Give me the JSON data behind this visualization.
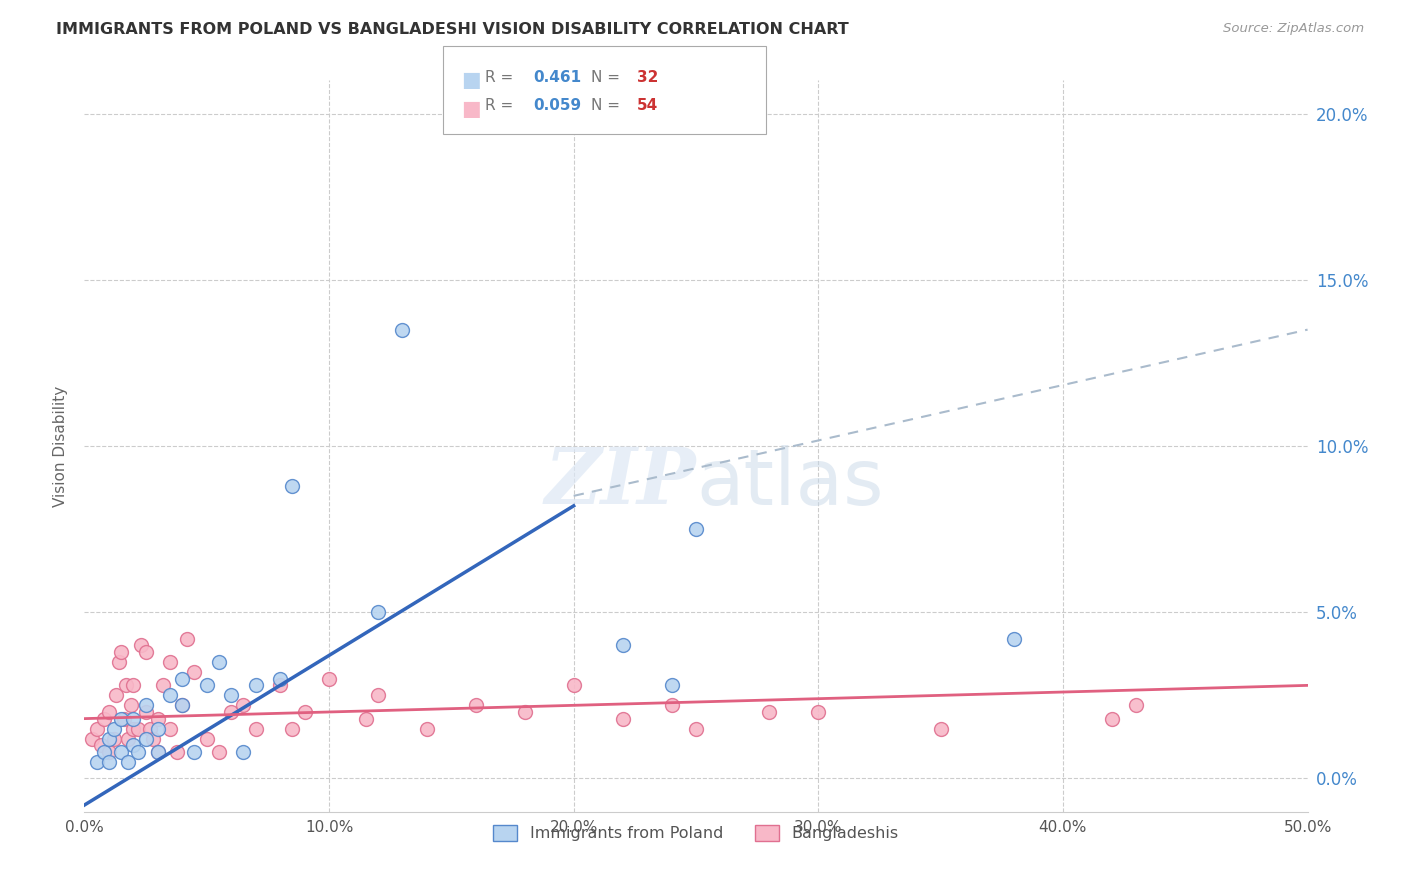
{
  "title": "IMMIGRANTS FROM POLAND VS BANGLADESHI VISION DISABILITY CORRELATION CHART",
  "source": "Source: ZipAtlas.com",
  "ylabel": "Vision Disability",
  "legend_label1": "Immigrants from Poland",
  "legend_label2": "Bangladeshis",
  "R1": "0.461",
  "N1": "32",
  "R2": "0.059",
  "N2": "54",
  "color_blue_fill": "#b8d4f0",
  "color_blue_edge": "#5588cc",
  "color_blue_line": "#3366bb",
  "color_pink_fill": "#f8b8c8",
  "color_pink_edge": "#e07090",
  "color_pink_line": "#e06080",
  "color_dashed": "#aabbcc",
  "ytick_color": "#4488cc",
  "xlim": [
    0.0,
    0.5
  ],
  "ylim": [
    -0.01,
    0.21
  ],
  "ytick_vals": [
    0.0,
    0.05,
    0.1,
    0.15,
    0.2
  ],
  "ytick_labels": [
    "0.0%",
    "5.0%",
    "10.0%",
    "15.0%",
    "20.0%"
  ],
  "xtick_vals": [
    0.0,
    0.1,
    0.2,
    0.3,
    0.4,
    0.5
  ],
  "xtick_labels": [
    "0.0%",
    "10.0%",
    "20.0%",
    "30.0%",
    "40.0%",
    "50.0%"
  ],
  "blue_x": [
    0.005,
    0.008,
    0.01,
    0.01,
    0.012,
    0.015,
    0.015,
    0.018,
    0.02,
    0.02,
    0.022,
    0.025,
    0.025,
    0.03,
    0.03,
    0.035,
    0.04,
    0.04,
    0.045,
    0.05,
    0.055,
    0.06,
    0.065,
    0.07,
    0.08,
    0.085,
    0.12,
    0.13,
    0.22,
    0.24,
    0.25,
    0.38
  ],
  "blue_y": [
    0.005,
    0.008,
    0.005,
    0.012,
    0.015,
    0.008,
    0.018,
    0.005,
    0.01,
    0.018,
    0.008,
    0.012,
    0.022,
    0.015,
    0.008,
    0.025,
    0.022,
    0.03,
    0.008,
    0.028,
    0.035,
    0.025,
    0.008,
    0.028,
    0.03,
    0.088,
    0.05,
    0.135,
    0.04,
    0.028,
    0.075,
    0.042
  ],
  "pink_x": [
    0.003,
    0.005,
    0.007,
    0.008,
    0.01,
    0.01,
    0.012,
    0.013,
    0.014,
    0.015,
    0.016,
    0.017,
    0.018,
    0.019,
    0.02,
    0.02,
    0.022,
    0.023,
    0.025,
    0.025,
    0.027,
    0.028,
    0.03,
    0.03,
    0.032,
    0.035,
    0.035,
    0.038,
    0.04,
    0.042,
    0.045,
    0.05,
    0.055,
    0.06,
    0.065,
    0.07,
    0.08,
    0.085,
    0.09,
    0.1,
    0.115,
    0.12,
    0.14,
    0.16,
    0.18,
    0.2,
    0.22,
    0.24,
    0.25,
    0.28,
    0.3,
    0.35,
    0.42,
    0.43
  ],
  "pink_y": [
    0.012,
    0.015,
    0.01,
    0.018,
    0.008,
    0.02,
    0.012,
    0.025,
    0.035,
    0.038,
    0.018,
    0.028,
    0.012,
    0.022,
    0.015,
    0.028,
    0.015,
    0.04,
    0.02,
    0.038,
    0.015,
    0.012,
    0.018,
    0.008,
    0.028,
    0.015,
    0.035,
    0.008,
    0.022,
    0.042,
    0.032,
    0.012,
    0.008,
    0.02,
    0.022,
    0.015,
    0.028,
    0.015,
    0.02,
    0.03,
    0.018,
    0.025,
    0.015,
    0.022,
    0.02,
    0.028,
    0.018,
    0.022,
    0.015,
    0.02,
    0.02,
    0.015,
    0.018,
    0.022
  ],
  "blue_line_x0": 0.0,
  "blue_line_y0": -0.008,
  "blue_line_x1": 0.2,
  "blue_line_y1": 0.082,
  "pink_line_x0": 0.0,
  "pink_line_y0": 0.018,
  "pink_line_x1": 0.5,
  "pink_line_y1": 0.028,
  "dash_line_x0": 0.2,
  "dash_line_y0": 0.085,
  "dash_line_x1": 0.5,
  "dash_line_y1": 0.135,
  "background_color": "#ffffff",
  "grid_color": "#cccccc"
}
